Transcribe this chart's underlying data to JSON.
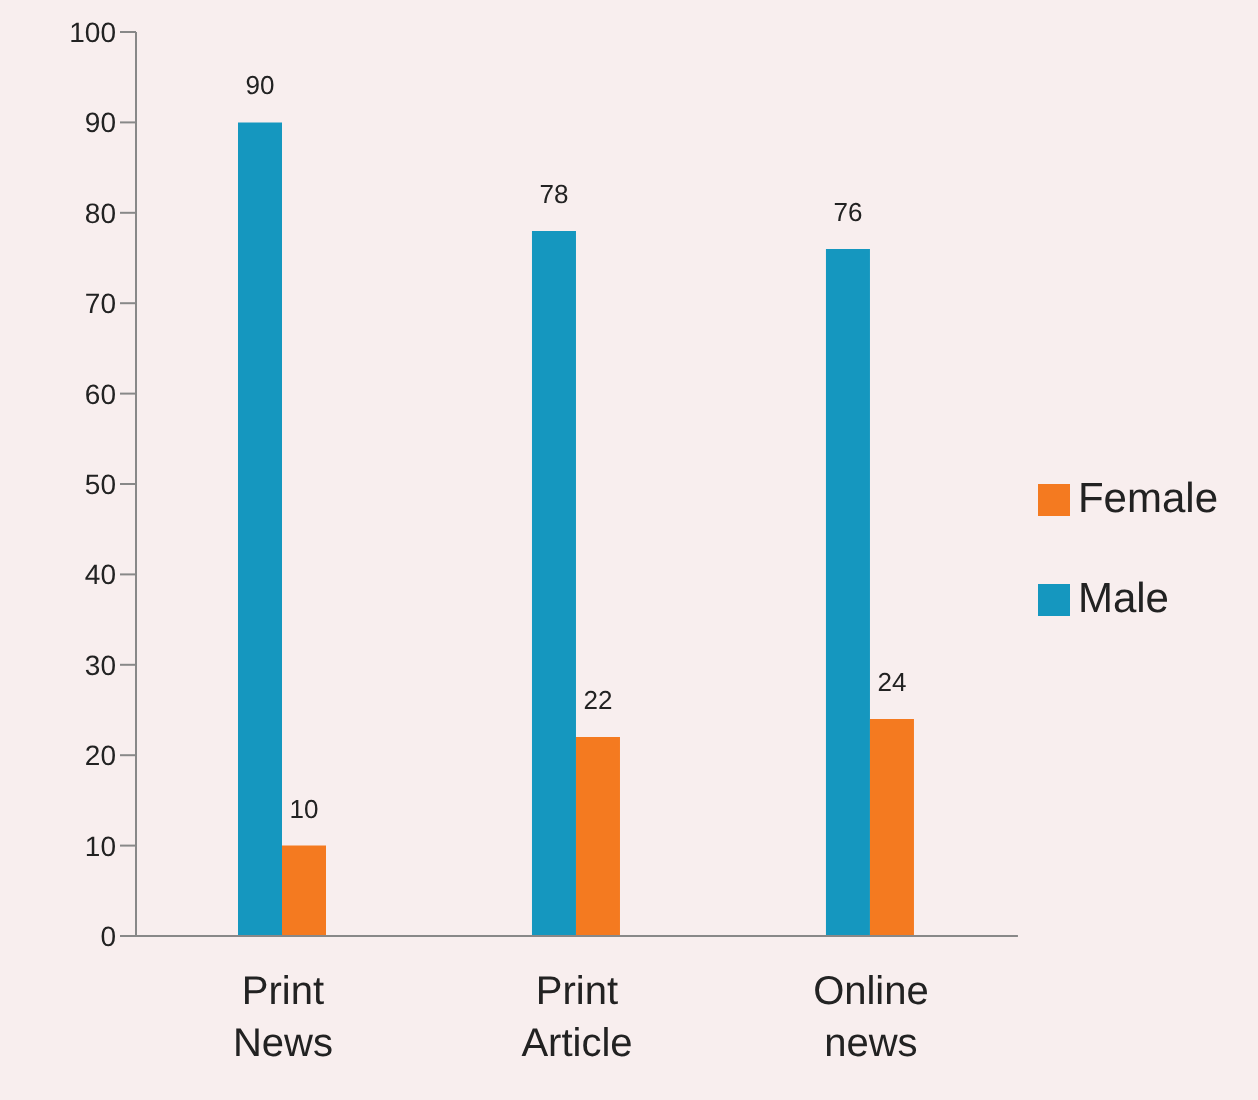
{
  "chart_data": {
    "type": "bar",
    "categories": [
      "Print News",
      "Print Article",
      "Online news"
    ],
    "series": [
      {
        "name": "Male",
        "color": "#1597bf",
        "values": [
          90,
          78,
          76
        ]
      },
      {
        "name": "Female",
        "color": "#f47a20",
        "values": [
          10,
          22,
          24
        ]
      }
    ],
    "ylim": [
      0,
      100
    ],
    "yticks": [
      0,
      10,
      20,
      30,
      40,
      50,
      60,
      70,
      80,
      90,
      100
    ],
    "grid": false,
    "legend": "right",
    "data_labels": true
  }
}
